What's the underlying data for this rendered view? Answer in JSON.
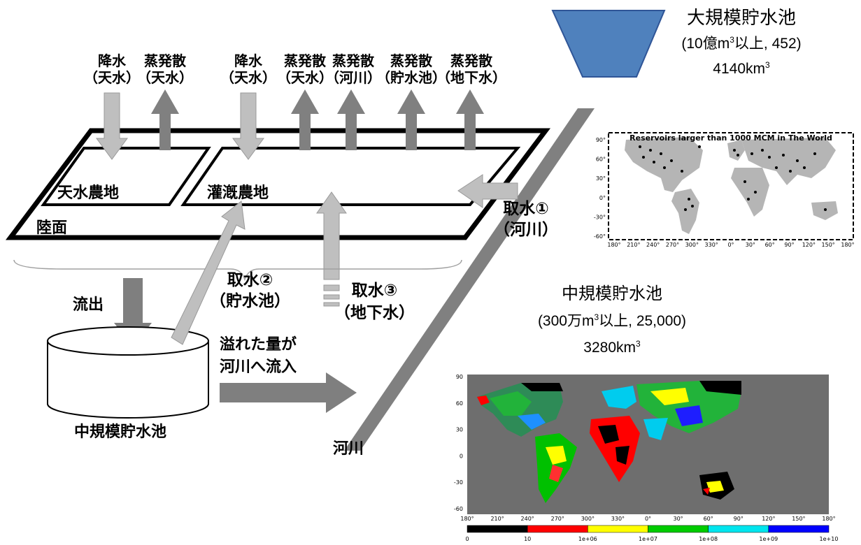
{
  "fluxes": [
    {
      "name": "降水",
      "sub": "（天水）"
    },
    {
      "name": "蒸発散",
      "sub": "（天水）"
    },
    {
      "name": "降水",
      "sub": "（天水）"
    },
    {
      "name": "蒸発散",
      "sub": "（天水）"
    },
    {
      "name": "蒸発散",
      "sub": "（河川）"
    },
    {
      "name": "蒸発散",
      "sub": "（貯水池）"
    },
    {
      "name": "蒸発散",
      "sub": "（地下水）"
    }
  ],
  "land": {
    "rainfed": "天水農地",
    "irrigated": "灌漑農地",
    "surface": "陸面"
  },
  "withdrawals": {
    "river": {
      "title": "取水①",
      "sub": "（河川）"
    },
    "reservoir": {
      "title": "取水②",
      "sub": "（貯水池）"
    },
    "groundwater": {
      "title": "取水③",
      "sub": "（地下水）"
    }
  },
  "runoff": "流出",
  "overflow": {
    "line1": "溢れた量が",
    "line2": "河川へ流入"
  },
  "medium_reservoir_label": "中規模貯水池",
  "river_label": "河川",
  "large_reservoir": {
    "title": "大規模貯水池",
    "detail_pre": "(10億m",
    "detail_sup": "3",
    "detail_post": "以上, 452)",
    "volume_pre": "4140km",
    "volume_sup": "3"
  },
  "medium_reservoir": {
    "title": "中規模貯水池",
    "detail_pre": "(300万m",
    "detail_sup": "3",
    "detail_post": "以上, 25,000)",
    "volume_pre": "3280km",
    "volume_sup": "3"
  },
  "map1": {
    "title": "Reservoirs larger than 1000 MCM in The  World",
    "lat_ticks": [
      "90°",
      "60°",
      "30°",
      "0°",
      "-30°",
      "-60°"
    ],
    "lon_ticks": [
      "180°",
      "210°",
      "240°",
      "270°",
      "300°",
      "330°",
      "0°",
      "30°",
      "60°",
      "90°",
      "120°",
      "150°",
      "180°"
    ]
  },
  "map2": {
    "lat_ticks": [
      "90",
      "60",
      "30",
      "0",
      "-30",
      "-60"
    ],
    "lon_ticks": [
      "180°",
      "210°",
      "240°",
      "270°",
      "300°",
      "330°",
      "0°",
      "30°",
      "60°",
      "90°",
      "120°",
      "150°",
      "180°"
    ],
    "colorbar_colors": [
      "#000000",
      "#ff0000",
      "#ffff00",
      "#00cc00",
      "#00e5ee",
      "#0000ff"
    ],
    "colorbar_labels": [
      "0",
      "10",
      "1e+06",
      "1e+07",
      "1e+08",
      "1e+09",
      "1e+10"
    ]
  },
  "colors": {
    "reservoir_fill": "#4f81bd",
    "arrow_light": "#bfbfbf",
    "arrow_dark": "#7f7f7f",
    "river": "#808080"
  }
}
